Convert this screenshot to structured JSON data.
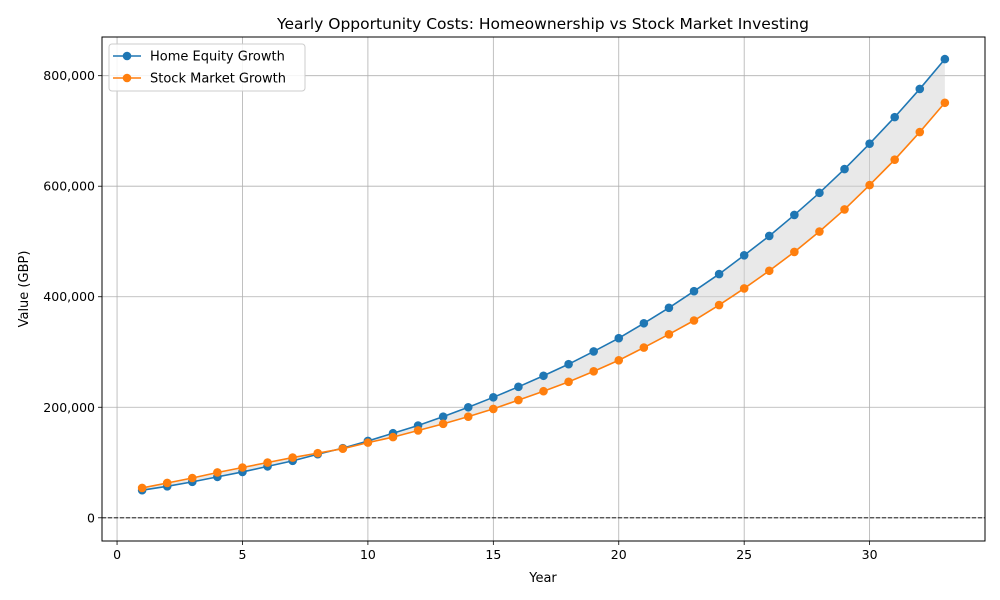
{
  "chart_data": {
    "type": "line",
    "title": "Yearly Opportunity Costs: Homeownership vs Stock Market Investing",
    "xlabel": "Year",
    "ylabel": "Value (GBP)",
    "xlim": [
      -0.6,
      34.6
    ],
    "ylim": [
      -42000,
      870000
    ],
    "x_ticks": [
      0,
      5,
      10,
      15,
      20,
      25,
      30
    ],
    "y_ticks": [
      0,
      200000,
      400000,
      600000,
      800000
    ],
    "y_tick_labels": [
      "0",
      "200,000",
      "400,000",
      "600,000",
      "800,000"
    ],
    "grid": true,
    "zero_line": true,
    "legend_position": "top-left",
    "fill_between": {
      "color": "#d3d3d3",
      "opacity": 0.5
    },
    "x": [
      1,
      2,
      3,
      4,
      5,
      6,
      7,
      8,
      9,
      10,
      11,
      12,
      13,
      14,
      15,
      16,
      17,
      18,
      19,
      20,
      21,
      22,
      23,
      24,
      25,
      26,
      27,
      28,
      29,
      30,
      31,
      32,
      33
    ],
    "series": [
      {
        "name": "Home Equity Growth",
        "color": "#1f77b4",
        "values": [
          50000,
          57000,
          65000,
          74000,
          83000,
          93000,
          103000,
          115000,
          126000,
          139000,
          153000,
          167000,
          183000,
          200000,
          218000,
          237000,
          257000,
          278000,
          301000,
          325000,
          352000,
          380000,
          410000,
          441000,
          475000,
          510000,
          548000,
          588000,
          631000,
          677000,
          725000,
          776000,
          830000
        ]
      },
      {
        "name": "Stock Market Growth",
        "color": "#ff7f0e",
        "values": [
          54000,
          63000,
          72000,
          82000,
          91000,
          100000,
          109000,
          117000,
          125000,
          136000,
          146000,
          158000,
          170000,
          183000,
          197000,
          213000,
          229000,
          246000,
          265000,
          285000,
          308000,
          332000,
          357000,
          385000,
          415000,
          447000,
          481000,
          518000,
          558000,
          602000,
          648000,
          698000,
          751000
        ]
      }
    ]
  }
}
